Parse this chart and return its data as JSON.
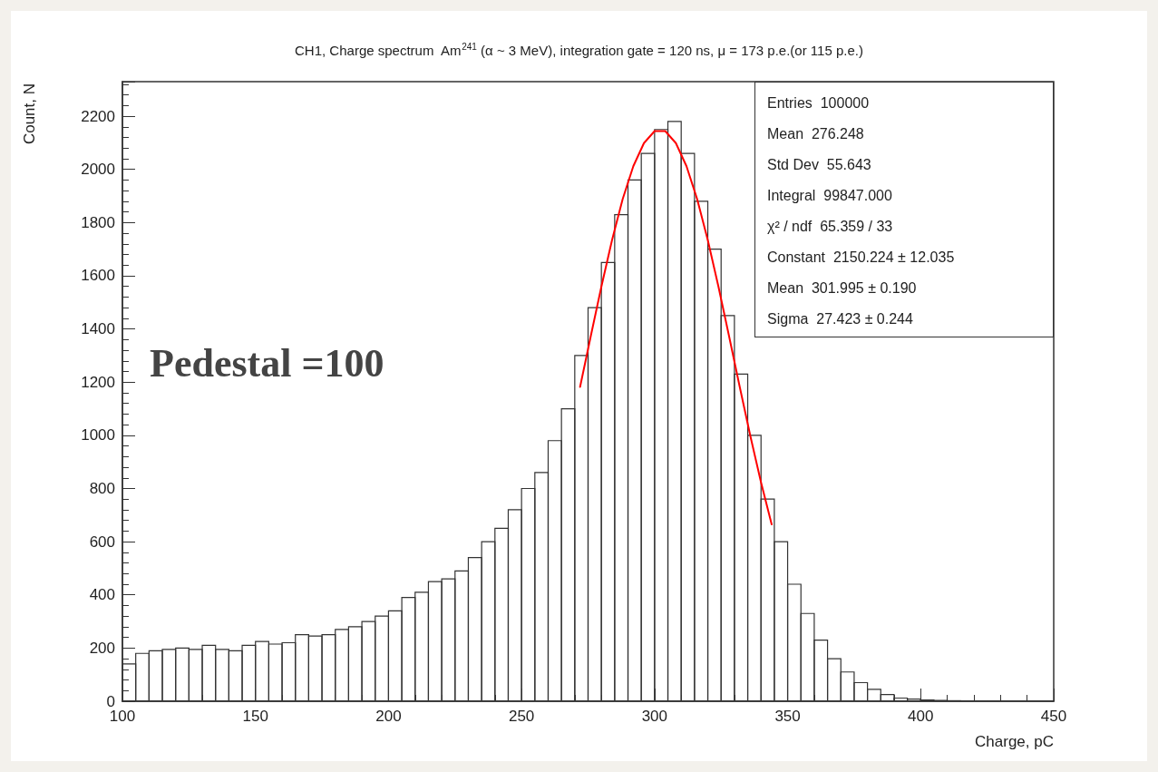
{
  "chart_data": {
    "type": "histogram",
    "title": "CH1, Charge spectrum  Am$^{241}$ (α ~ 3 MeV), integration gate = 120 ns, μ = 173 p.e.(or 115 p.e.)",
    "xlabel": "Charge, pC",
    "ylabel": "Count, N",
    "bins": [
      100,
      105,
      110,
      115,
      120,
      125,
      130,
      135,
      140,
      145,
      150,
      155,
      160,
      165,
      170,
      175,
      180,
      185,
      190,
      195,
      200,
      205,
      210,
      215,
      220,
      225,
      230,
      235,
      240,
      245,
      250,
      255,
      260,
      265,
      270,
      275,
      280,
      285,
      290,
      295,
      300,
      305,
      310,
      315,
      320,
      325,
      330,
      335,
      340,
      345,
      350,
      355,
      360,
      365,
      370,
      375,
      380,
      385,
      390,
      395,
      400,
      405,
      410,
      415,
      420,
      425,
      430,
      435,
      440,
      445,
      450
    ],
    "series": [
      {
        "color": "#333333",
        "values": [
          140,
          180,
          190,
          195,
          200,
          195,
          210,
          195,
          190,
          210,
          225,
          215,
          220,
          250,
          245,
          250,
          270,
          280,
          300,
          320,
          340,
          390,
          410,
          450,
          460,
          490,
          540,
          600,
          650,
          720,
          800,
          860,
          980,
          1100,
          1300,
          1480,
          1650,
          1830,
          1960,
          2060,
          2150,
          2180,
          2060,
          1880,
          1700,
          1450,
          1230,
          1000,
          760,
          600,
          440,
          330,
          230,
          160,
          110,
          70,
          45,
          25,
          12,
          8,
          5,
          3,
          2,
          1,
          1,
          1,
          0,
          0,
          0,
          0
        ]
      },
      {
        "type": "line",
        "color": "#ff0000",
        "marker": "none",
        "x": [
          272,
          276,
          280,
          284,
          288,
          292,
          296,
          300,
          304,
          308,
          312,
          316,
          320,
          324,
          328,
          332,
          336,
          340,
          344
        ],
        "values": [
          1182,
          1372,
          1559,
          1734,
          1888,
          2012,
          2099,
          2144,
          2144,
          2099,
          2012,
          1888,
          1734,
          1559,
          1372,
          1182,
          997,
          823,
          665
        ]
      }
    ],
    "xlim": [
      100,
      450
    ],
    "xticks": [
      100,
      150,
      200,
      250,
      300,
      350,
      400,
      450
    ],
    "ylim": [
      0,
      2330
    ],
    "yticks": [
      0,
      200,
      400,
      600,
      800,
      1000,
      1200,
      1400,
      1600,
      1800,
      2000,
      2200
    ],
    "annotations": [
      "Pedestal =100",
      "Entries  100000",
      "Mean  276.248",
      "Std Dev  55.643",
      "Integral  99847.000",
      "χ² / ndf  65.359 / 33",
      "Constant  2150.224 ± 12.035",
      "Mean  301.995 ± 0.190",
      "Sigma  27.423 ± 0.244"
    ]
  }
}
